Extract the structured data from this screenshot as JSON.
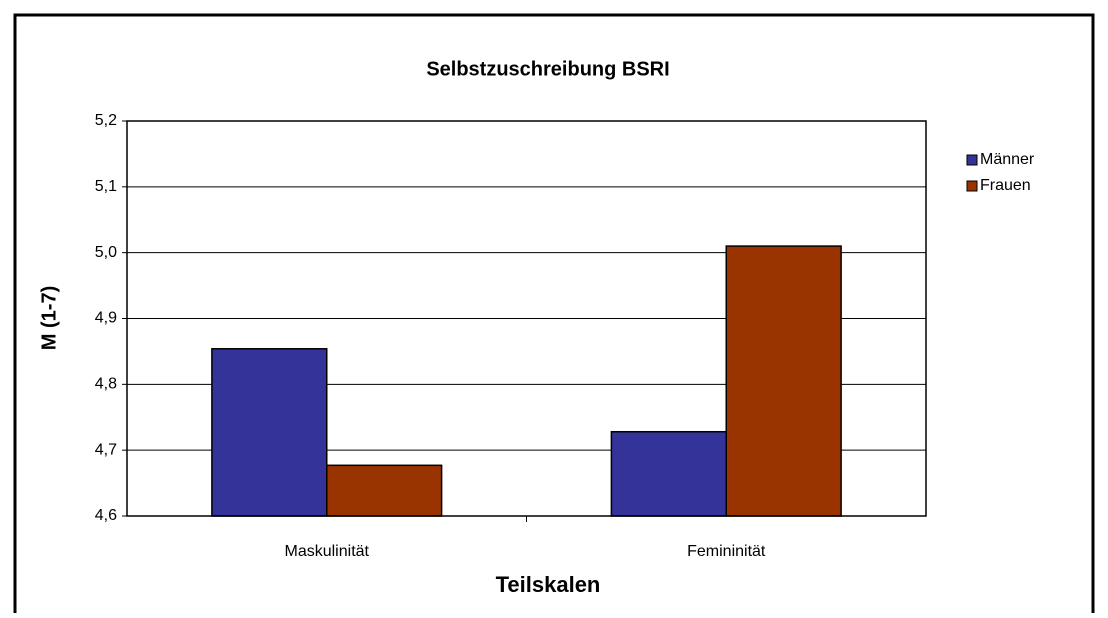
{
  "chart_data": {
    "type": "bar",
    "title": "Selbstzuschreibung BSRI",
    "x_label": "Teilskalen",
    "y_label": "M (1-7)",
    "categories": [
      "Maskulinität",
      "Femininität"
    ],
    "series": [
      {
        "name": "Männer",
        "color": "#333399",
        "values": [
          4.854,
          4.728
        ]
      },
      {
        "name": "Frauen",
        "color": "#993300",
        "values": [
          4.677,
          5.01
        ]
      }
    ],
    "ylim": [
      4.6,
      5.2
    ],
    "yticks": [
      {
        "value": 4.6,
        "label": "4,6"
      },
      {
        "value": 4.7,
        "label": "4,7"
      },
      {
        "value": 4.8,
        "label": "4,8"
      },
      {
        "value": 4.9,
        "label": "4,9"
      },
      {
        "value": 5.0,
        "label": "5,0"
      },
      {
        "value": 5.1,
        "label": "5,1"
      },
      {
        "value": 5.2,
        "label": "5,2"
      }
    ],
    "grid": true,
    "legend": "right"
  }
}
